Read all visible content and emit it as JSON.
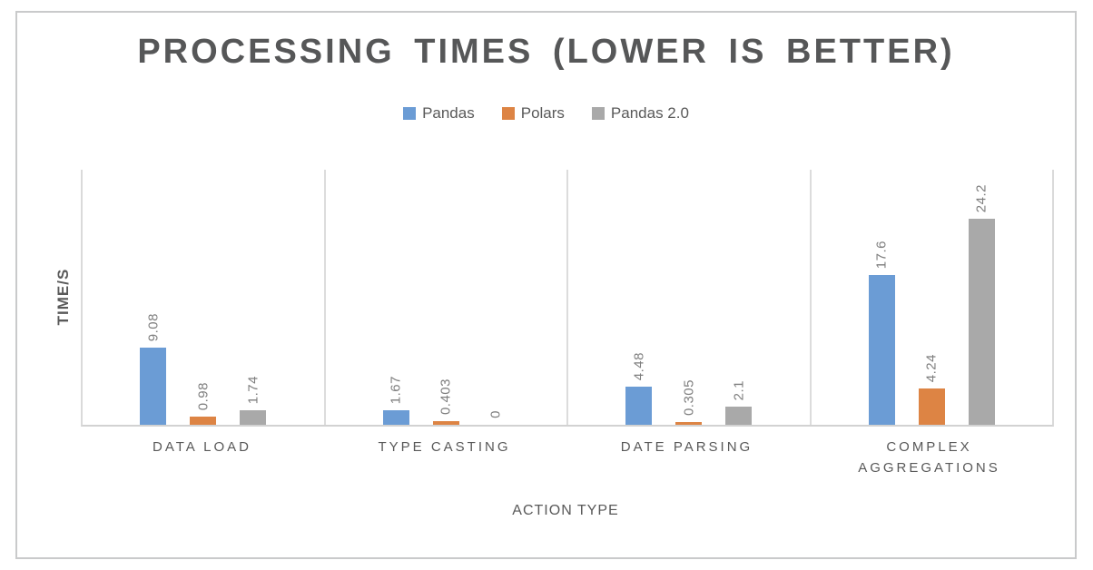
{
  "window": {
    "background": "#ffffff",
    "frame_border_color": "#c9cacb"
  },
  "chart_data": {
    "type": "bar",
    "title": "PROCESSING TIMES (LOWER IS BETTER)",
    "xlabel": "ACTION TYPE",
    "ylabel": "TIME/S",
    "ylim": [
      0,
      30
    ],
    "grid": false,
    "panel_separators": true,
    "legend_position": "top-center",
    "data_label_rotation": -90,
    "categories": [
      "DATA LOAD",
      "TYPE CASTING",
      "DATE PARSING",
      "COMPLEX AGGREGATIONS"
    ],
    "series": [
      {
        "name": "Pandas",
        "color": "#6b9cd5",
        "values": [
          9.08,
          1.67,
          4.48,
          17.6
        ],
        "labels": [
          "9.08",
          "1.67",
          "4.48",
          "17.6"
        ]
      },
      {
        "name": "Polars",
        "color": "#dd8444",
        "values": [
          0.98,
          0.403,
          0.305,
          4.24
        ],
        "labels": [
          "0.98",
          "0.403",
          "0.305",
          "4.24"
        ]
      },
      {
        "name": "Pandas 2.0",
        "color": "#a9a9a9",
        "values": [
          1.74,
          0,
          2.1,
          24.2
        ],
        "labels": [
          "1.74",
          "0",
          "2.1",
          "24.2"
        ]
      }
    ],
    "colors": {
      "title_text": "#565758",
      "axis_text": "#595959",
      "data_label_text": "#7e7e7e",
      "axis_line": "#d6d6d6"
    }
  }
}
